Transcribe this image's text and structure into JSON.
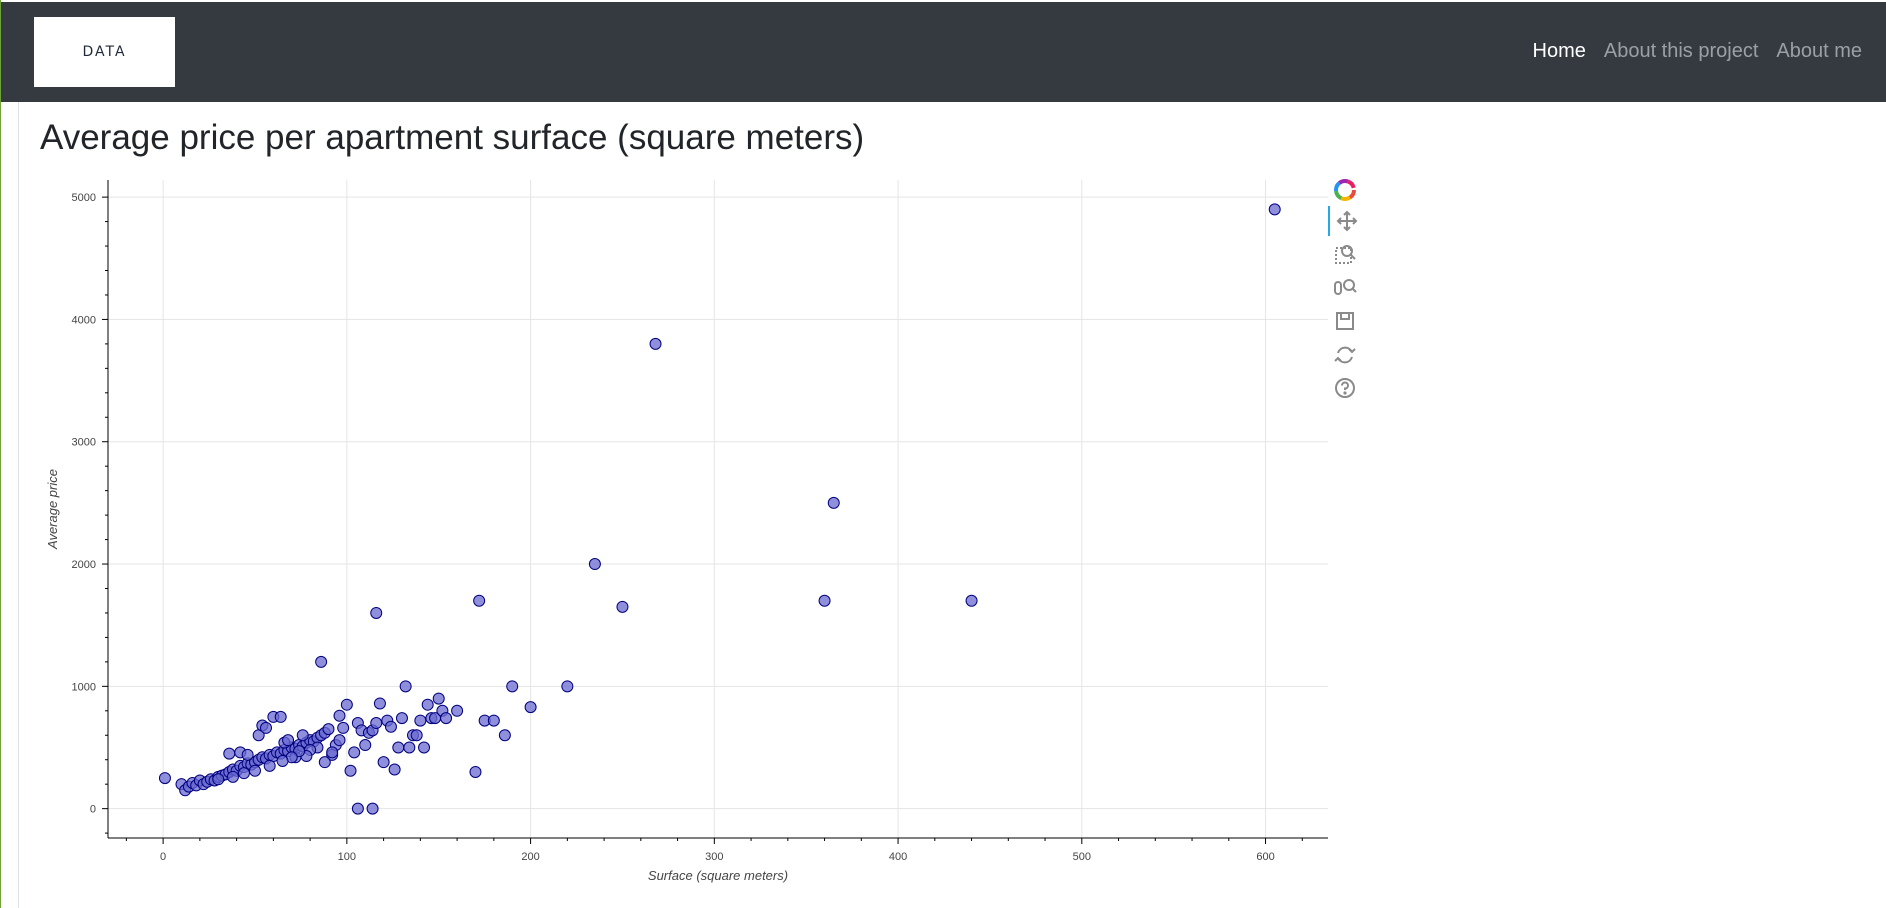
{
  "navbar": {
    "brand_text": "DATA",
    "links": [
      {
        "label": "Home",
        "active": true
      },
      {
        "label": "About this project",
        "active": false
      },
      {
        "label": "About me",
        "active": false
      }
    ]
  },
  "page": {
    "title": "Average price per apartment surface (square meters)"
  },
  "toolbar": {
    "tools": [
      "bokeh-logo-icon",
      "pan-icon",
      "box-zoom-icon",
      "wheel-zoom-icon",
      "save-icon",
      "reset-icon",
      "help-icon"
    ]
  },
  "colors": {
    "navbar_bg": "#343a40",
    "point_fill": "#6a6ad0",
    "point_stroke": "#000080"
  },
  "chart_data": {
    "type": "scatter",
    "xlabel": "Surface (square meters)",
    "ylabel": "Average price",
    "xlim": [
      -30,
      634
    ],
    "ylim": [
      -240,
      5140
    ],
    "x_ticks": [
      0,
      100,
      200,
      300,
      400,
      500,
      600
    ],
    "y_ticks": [
      0,
      1000,
      2000,
      3000,
      4000,
      5000
    ],
    "grid": true,
    "series": [
      {
        "points": [
          [
            1,
            250
          ],
          [
            10,
            200
          ],
          [
            12,
            150
          ],
          [
            14,
            180
          ],
          [
            16,
            210
          ],
          [
            18,
            190
          ],
          [
            20,
            230
          ],
          [
            22,
            200
          ],
          [
            24,
            220
          ],
          [
            26,
            240
          ],
          [
            28,
            230
          ],
          [
            30,
            260
          ],
          [
            32,
            270
          ],
          [
            34,
            280
          ],
          [
            36,
            300
          ],
          [
            38,
            320
          ],
          [
            40,
            310
          ],
          [
            42,
            350
          ],
          [
            44,
            340
          ],
          [
            46,
            370
          ],
          [
            48,
            360
          ],
          [
            50,
            380
          ],
          [
            52,
            400
          ],
          [
            54,
            420
          ],
          [
            56,
            410
          ],
          [
            58,
            440
          ],
          [
            60,
            430
          ],
          [
            62,
            460
          ],
          [
            64,
            450
          ],
          [
            66,
            480
          ],
          [
            68,
            470
          ],
          [
            70,
            500
          ],
          [
            72,
            490
          ],
          [
            74,
            520
          ],
          [
            76,
            510
          ],
          [
            78,
            540
          ],
          [
            80,
            560
          ],
          [
            82,
            550
          ],
          [
            84,
            580
          ],
          [
            86,
            600
          ],
          [
            36,
            450
          ],
          [
            42,
            460
          ],
          [
            46,
            440
          ],
          [
            52,
            600
          ],
          [
            54,
            680
          ],
          [
            56,
            660
          ],
          [
            60,
            750
          ],
          [
            64,
            750
          ],
          [
            66,
            540
          ],
          [
            68,
            560
          ],
          [
            72,
            420
          ],
          [
            76,
            600
          ],
          [
            88,
            620
          ],
          [
            90,
            650
          ],
          [
            92,
            440
          ],
          [
            94,
            520
          ],
          [
            96,
            760
          ],
          [
            98,
            660
          ],
          [
            100,
            850
          ],
          [
            102,
            310
          ],
          [
            104,
            460
          ],
          [
            106,
            700
          ],
          [
            108,
            640
          ],
          [
            110,
            520
          ],
          [
            112,
            620
          ],
          [
            114,
            640
          ],
          [
            116,
            700
          ],
          [
            118,
            860
          ],
          [
            120,
            380
          ],
          [
            122,
            720
          ],
          [
            124,
            670
          ],
          [
            126,
            320
          ],
          [
            128,
            500
          ],
          [
            130,
            740
          ],
          [
            132,
            1000
          ],
          [
            134,
            500
          ],
          [
            136,
            600
          ],
          [
            138,
            600
          ],
          [
            140,
            720
          ],
          [
            142,
            500
          ],
          [
            144,
            850
          ],
          [
            146,
            740
          ],
          [
            148,
            740
          ],
          [
            150,
            900
          ],
          [
            152,
            800
          ],
          [
            154,
            740
          ],
          [
            160,
            800
          ],
          [
            86,
            1200
          ],
          [
            116,
            1600
          ],
          [
            106,
            0
          ],
          [
            114,
            0
          ],
          [
            92,
            460
          ],
          [
            88,
            380
          ],
          [
            96,
            560
          ],
          [
            84,
            500
          ],
          [
            80,
            480
          ],
          [
            78,
            430
          ],
          [
            74,
            470
          ],
          [
            70,
            420
          ],
          [
            65,
            390
          ],
          [
            58,
            350
          ],
          [
            50,
            310
          ],
          [
            44,
            290
          ],
          [
            38,
            260
          ],
          [
            30,
            240
          ],
          [
            170,
            300
          ],
          [
            172,
            1700
          ],
          [
            175,
            720
          ],
          [
            180,
            720
          ],
          [
            186,
            600
          ],
          [
            190,
            1000
          ],
          [
            200,
            830
          ],
          [
            220,
            1000
          ],
          [
            235,
            2000
          ],
          [
            250,
            1650
          ],
          [
            268,
            3800
          ],
          [
            360,
            1700
          ],
          [
            365,
            2500
          ],
          [
            440,
            1700
          ],
          [
            605,
            4900
          ]
        ]
      }
    ]
  }
}
